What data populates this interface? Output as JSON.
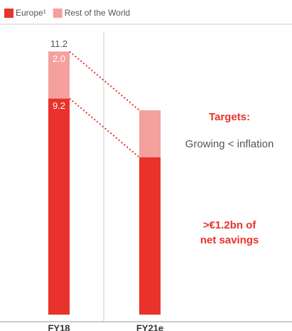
{
  "chart_data": {
    "type": "stacked_bar",
    "categories": [
      "FY18",
      "FY21e"
    ],
    "series": [
      {
        "name": "Europe¹",
        "color": "#e8322b",
        "values": [
          9.2,
          6.7
        ],
        "value_labels": [
          "9.2",
          null
        ]
      },
      {
        "name": "Rest of the World",
        "color": "#f4a09c",
        "values": [
          2.0,
          2.0
        ],
        "value_labels": [
          "2.0",
          null
        ]
      }
    ],
    "totals": [
      11.2,
      null
    ],
    "ylim": [
      0,
      12
    ],
    "annotations": {
      "targets": "Targets:",
      "growing": "Growing < inflation",
      "savings": [
        ">€1.2bn of",
        "net savings"
      ]
    }
  }
}
